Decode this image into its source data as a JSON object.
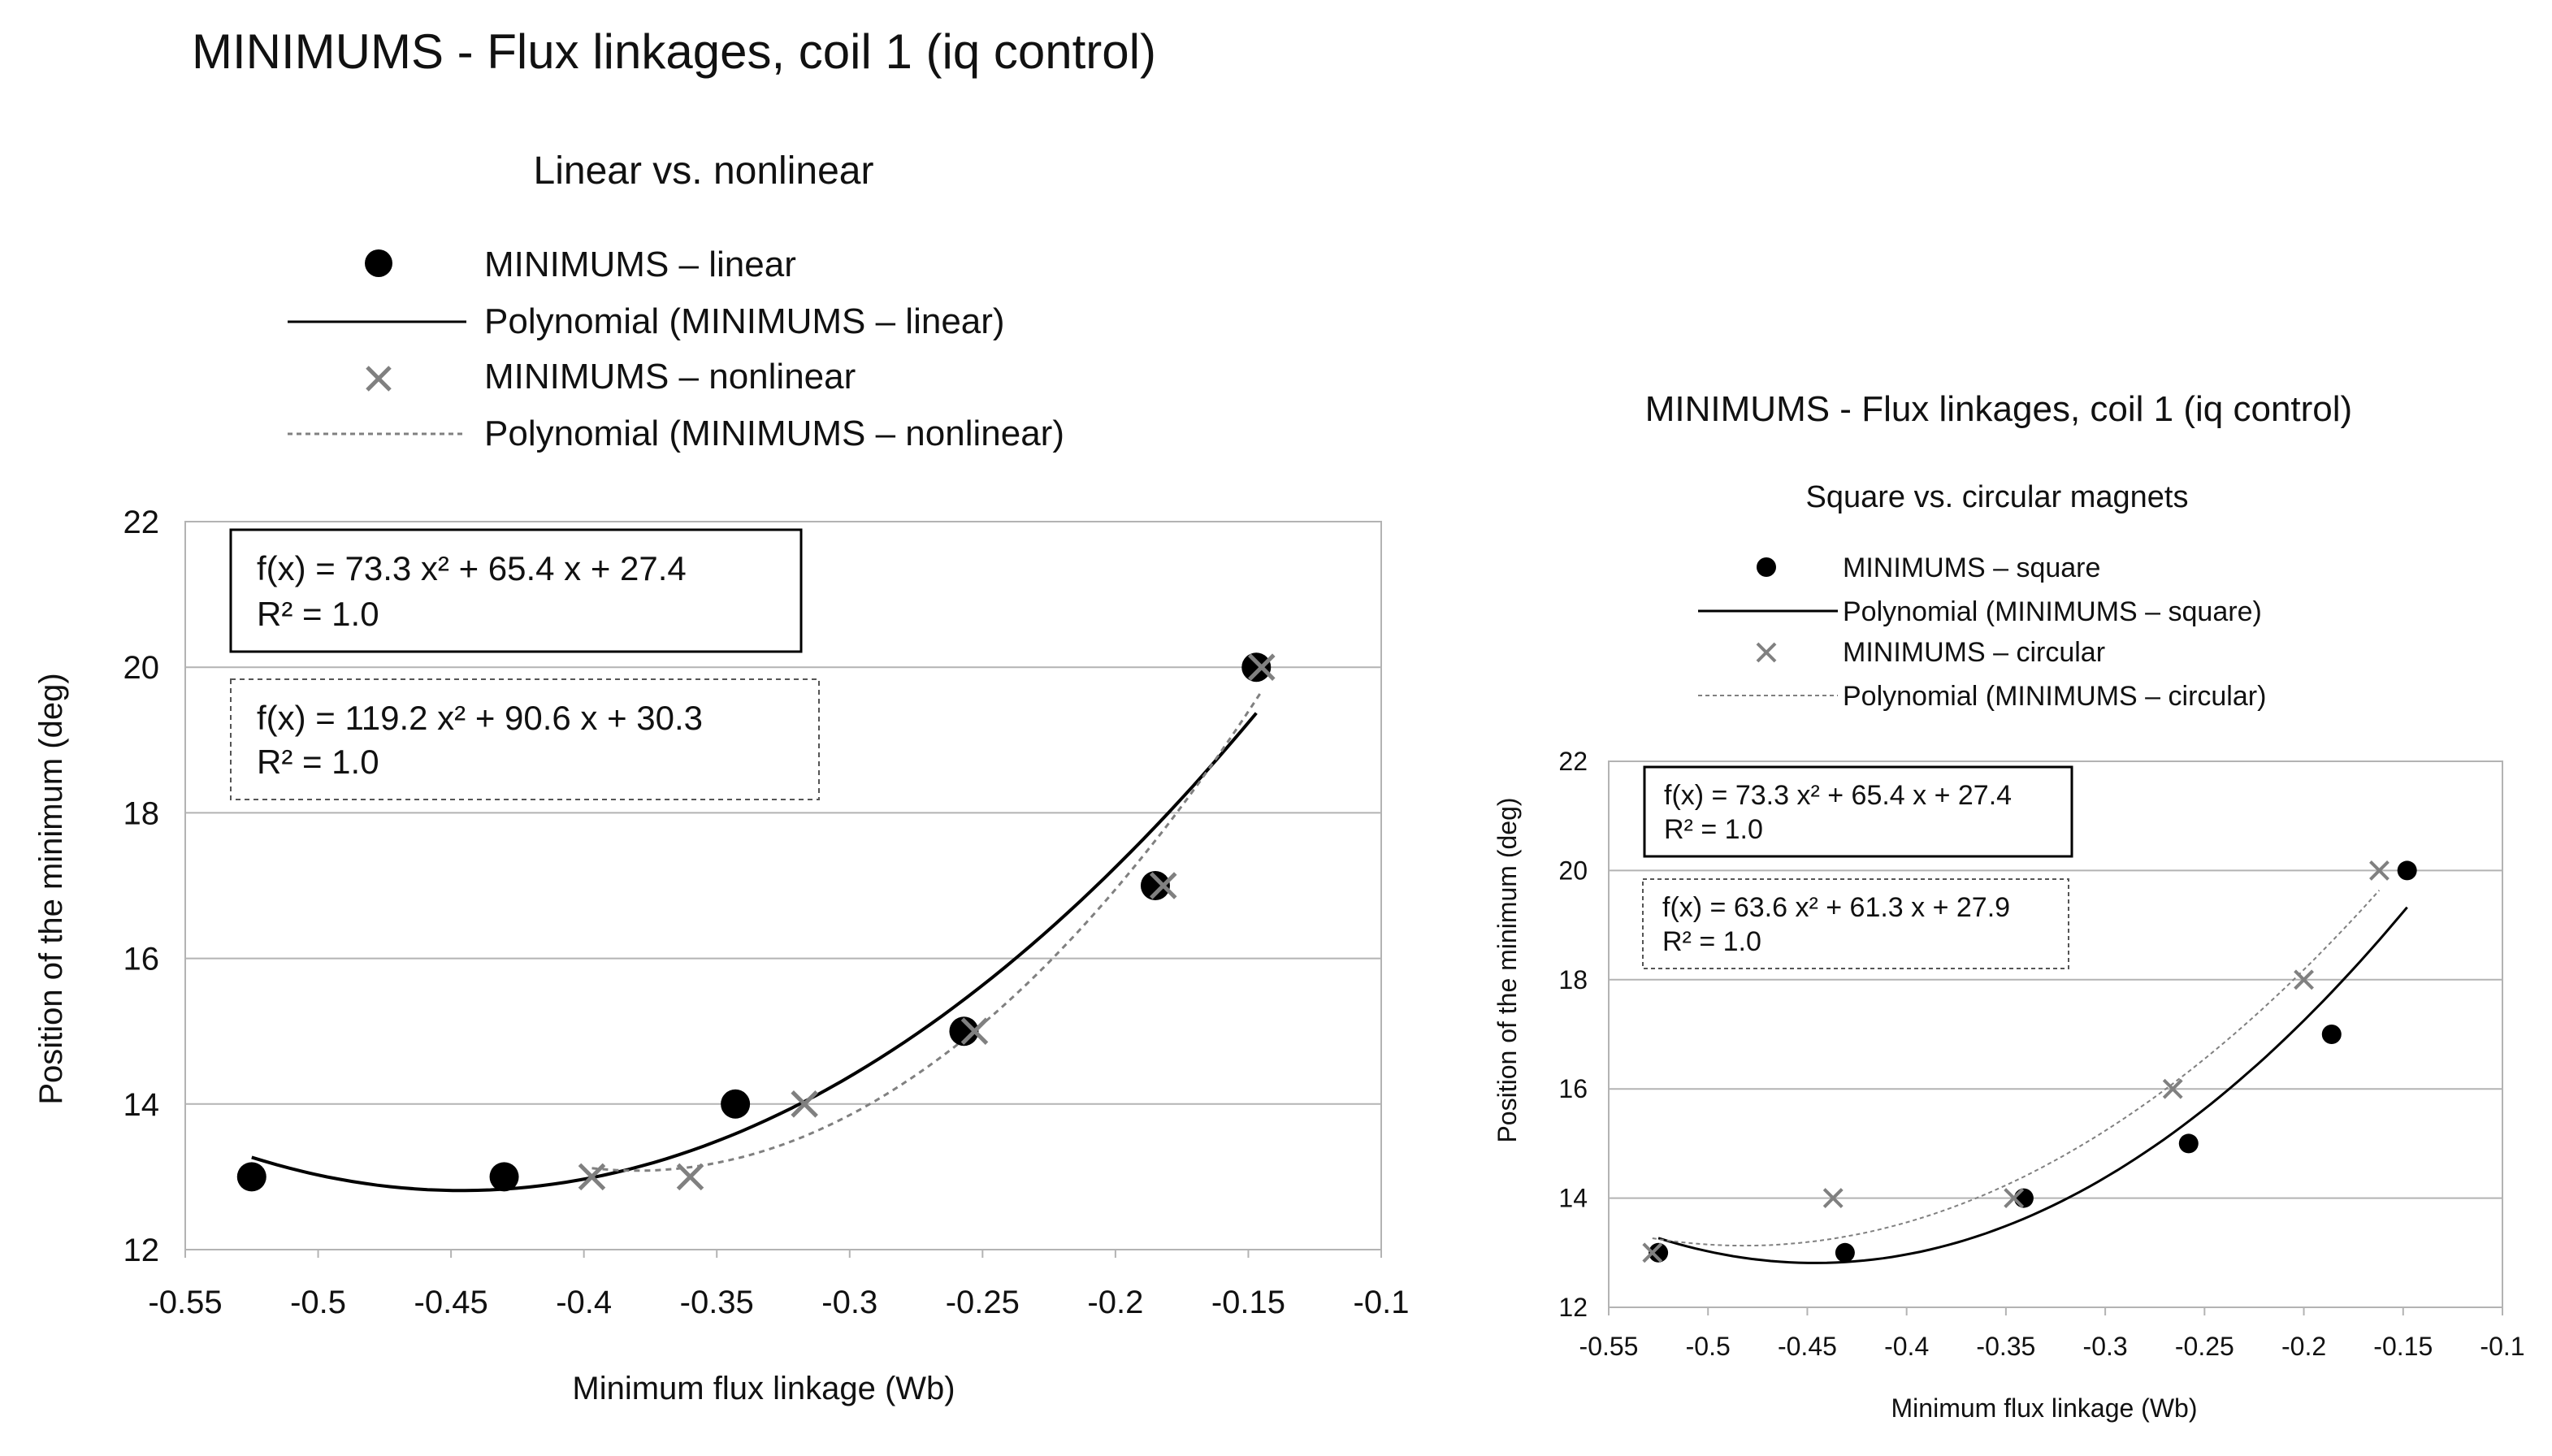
{
  "page_title": "MINIMUMS - Flux linkages, coil 1 (iq control)",
  "chart_data": [
    {
      "type": "scatter",
      "title": "Linear vs. nonlinear",
      "xlabel": "Minimum flux linkage (Wb)",
      "ylabel": "Position of the minimum (deg)",
      "xlim": [
        -0.55,
        -0.1
      ],
      "ylim": [
        12,
        22
      ],
      "xticks": [
        -0.55,
        -0.5,
        -0.45,
        -0.4,
        -0.35,
        -0.3,
        -0.25,
        -0.2,
        -0.15,
        -0.1
      ],
      "xtick_labels": [
        "-0.55",
        "-0.5",
        "-0.45",
        "-0.4",
        "-0.35",
        "-0.3",
        "-0.25",
        "-0.2",
        "-0.15",
        "-0.1"
      ],
      "yticks": [
        12,
        14,
        16,
        18,
        20,
        22
      ],
      "ytick_labels": [
        "12",
        "14",
        "16",
        "18",
        "20",
        "22"
      ],
      "grid": true,
      "legend_position": "top",
      "series": [
        {
          "name": "MINIMUMS – linear",
          "kind": "points",
          "marker": "dot",
          "color": "#000000",
          "x": [
            -0.525,
            -0.43,
            -0.343,
            -0.257,
            -0.185,
            -0.147
          ],
          "y": [
            13,
            13,
            14,
            15,
            17,
            20
          ]
        },
        {
          "name": "Polynomial (MINIMUMS – linear)",
          "kind": "trendline",
          "style": "solid",
          "color": "#000000",
          "coef": [
            73.3,
            65.4,
            27.4
          ],
          "x_range": [
            -0.525,
            -0.147
          ]
        },
        {
          "name": "MINIMUMS – nonlinear",
          "kind": "points",
          "marker": "cross",
          "color": "#808080",
          "x": [
            -0.397,
            -0.36,
            -0.317,
            -0.253,
            -0.182,
            -0.145
          ],
          "y": [
            13,
            13,
            14,
            15,
            17,
            20
          ]
        },
        {
          "name": "Polynomial (MINIMUMS – nonlinear)",
          "kind": "trendline",
          "style": "dashed",
          "color": "#808080",
          "coef": [
            119.2,
            90.6,
            30.3
          ],
          "x_range": [
            -0.397,
            -0.145
          ]
        }
      ],
      "equations": [
        {
          "formula": "f(x) = 73.3 x² + 65.4 x + 27.4",
          "r2": "R² = 1.0",
          "border": "solid"
        },
        {
          "formula": "f(x) = 119.2 x² + 90.6 x + 30.3",
          "r2": "R² = 1.0",
          "border": "dashed"
        }
      ]
    },
    {
      "type": "scatter",
      "title": "MINIMUMS - Flux linkages, coil 1 (iq control)",
      "subtitle": "Square vs. circular magnets",
      "xlabel": "Minimum flux linkage (Wb)",
      "ylabel": "Position of the minimum (deg)",
      "xlim": [
        -0.55,
        -0.1
      ],
      "ylim": [
        12,
        22
      ],
      "xticks": [
        -0.55,
        -0.5,
        -0.45,
        -0.4,
        -0.35,
        -0.3,
        -0.25,
        -0.2,
        -0.15,
        -0.1
      ],
      "xtick_labels": [
        "-0.55",
        "-0.5",
        "-0.45",
        "-0.4",
        "-0.35",
        "-0.3",
        "-0.25",
        "-0.2",
        "-0.15",
        "-0.1"
      ],
      "yticks": [
        12,
        14,
        16,
        18,
        20,
        22
      ],
      "ytick_labels": [
        "12",
        "14",
        "16",
        "18",
        "20",
        "22"
      ],
      "grid": true,
      "legend_position": "top",
      "series": [
        {
          "name": "MINIMUMS – square",
          "kind": "points",
          "marker": "dot",
          "color": "#000000",
          "x": [
            -0.525,
            -0.431,
            -0.341,
            -0.258,
            -0.186,
            -0.148
          ],
          "y": [
            13,
            13,
            14,
            15,
            17,
            20
          ]
        },
        {
          "name": "Polynomial (MINIMUMS – square)",
          "kind": "trendline",
          "style": "solid",
          "color": "#000000",
          "coef": [
            73.3,
            65.4,
            27.4
          ],
          "x_range": [
            -0.525,
            -0.148
          ]
        },
        {
          "name": "MINIMUMS – circular",
          "kind": "points",
          "marker": "cross",
          "color": "#808080",
          "x": [
            -0.528,
            -0.437,
            -0.346,
            -0.266,
            -0.2,
            -0.162
          ],
          "y": [
            13,
            14,
            14,
            16,
            18,
            20
          ]
        },
        {
          "name": "Polynomial (MINIMUMS – circular)",
          "kind": "trendline",
          "style": "dashed",
          "color": "#808080",
          "coef": [
            63.6,
            61.3,
            27.9
          ],
          "x_range": [
            -0.528,
            -0.162
          ]
        }
      ],
      "equations": [
        {
          "formula": "f(x) = 73.3 x² + 65.4 x + 27.4",
          "r2": "R² = 1.0",
          "border": "solid"
        },
        {
          "formula": "f(x) = 63.6 x² + 61.3 x + 27.9",
          "r2": "R² = 1.0",
          "border": "dashed"
        }
      ]
    }
  ]
}
